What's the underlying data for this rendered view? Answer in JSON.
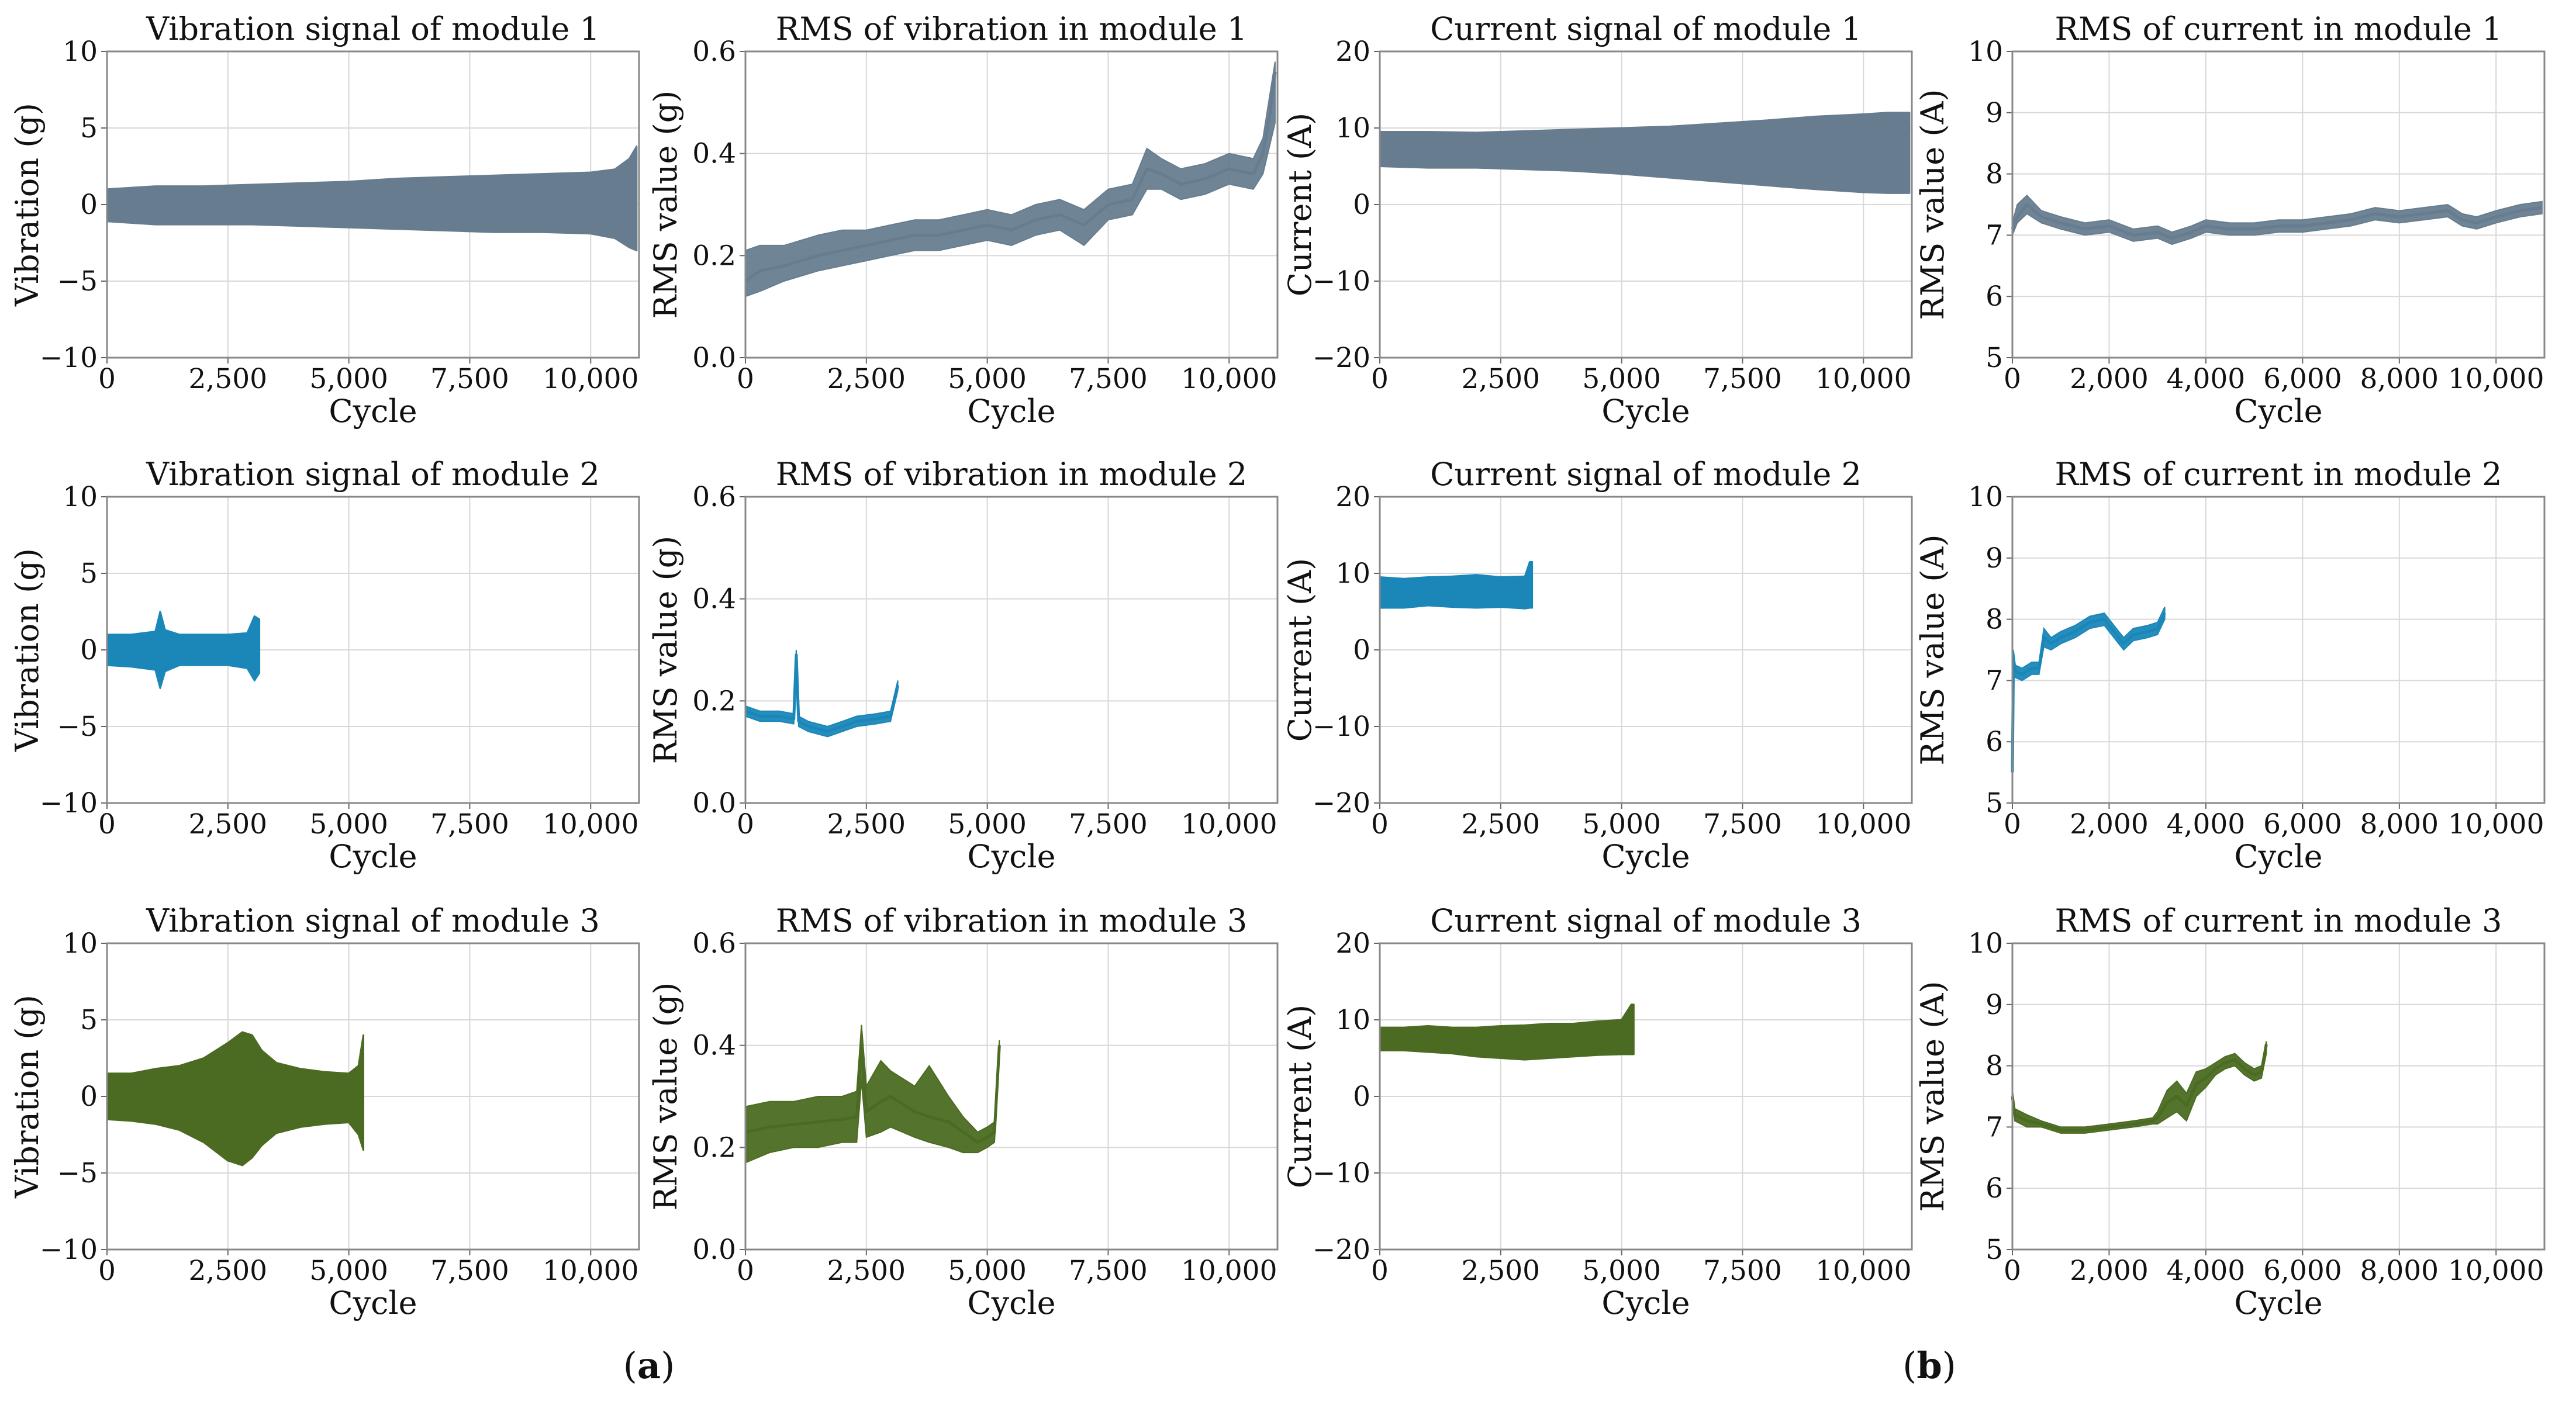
{
  "colors": {
    "module1": "#677d8f",
    "module2": "#1a87b8",
    "module3": "#4b6b22"
  },
  "chart_data": [
    {
      "type": "area",
      "title": "Vibration signal of module 1",
      "xlabel": "Cycle",
      "ylabel": "Vibration (g)",
      "xlim": [
        0,
        11000
      ],
      "ylim": [
        -10,
        10
      ],
      "xticks": [
        0,
        2500,
        5000,
        7500,
        10000
      ],
      "xtick_labels": [
        "0",
        "2,500",
        "5,000",
        "7,500",
        "10,000"
      ],
      "yticks": [
        -10,
        -5,
        0,
        5,
        10
      ],
      "ytick_labels": [
        "−10",
        "−5",
        "0",
        "5",
        "10"
      ],
      "color": "module1",
      "x": [
        0,
        1000,
        2000,
        3000,
        4000,
        5000,
        6000,
        7000,
        8000,
        9000,
        10000,
        10500,
        10800,
        10950
      ],
      "upper": [
        1.0,
        1.2,
        1.2,
        1.3,
        1.4,
        1.5,
        1.7,
        1.8,
        1.9,
        2.0,
        2.1,
        2.3,
        3.0,
        3.8
      ],
      "lower": [
        -1.1,
        -1.3,
        -1.3,
        -1.3,
        -1.4,
        -1.5,
        -1.6,
        -1.7,
        -1.8,
        -1.8,
        -1.9,
        -2.2,
        -2.8,
        -3.0
      ]
    },
    {
      "type": "line",
      "title": "RMS of vibration in module 1",
      "xlabel": "Cycle",
      "ylabel": "RMS value (g)",
      "xlim": [
        0,
        11000
      ],
      "ylim": [
        0,
        0.6
      ],
      "xticks": [
        0,
        2500,
        5000,
        7500,
        10000
      ],
      "xtick_labels": [
        "0",
        "2,500",
        "5,000",
        "7,500",
        "10,000"
      ],
      "yticks": [
        0,
        0.2,
        0.4,
        0.6
      ],
      "ytick_labels": [
        "0.0",
        "0.2",
        "0.4",
        "0.6"
      ],
      "color": "module1",
      "x": [
        0,
        300,
        800,
        1500,
        2000,
        2500,
        3000,
        3500,
        4000,
        4500,
        5000,
        5500,
        6000,
        6500,
        7000,
        7500,
        8000,
        8300,
        8600,
        9000,
        9500,
        10000,
        10500,
        10700,
        10850,
        10950
      ],
      "y": [
        0.15,
        0.17,
        0.18,
        0.2,
        0.21,
        0.22,
        0.23,
        0.24,
        0.24,
        0.25,
        0.26,
        0.25,
        0.27,
        0.28,
        0.26,
        0.3,
        0.31,
        0.37,
        0.36,
        0.34,
        0.35,
        0.37,
        0.36,
        0.4,
        0.48,
        0.56
      ],
      "y_upper": [
        0.21,
        0.22,
        0.22,
        0.24,
        0.25,
        0.25,
        0.26,
        0.27,
        0.27,
        0.28,
        0.29,
        0.28,
        0.3,
        0.31,
        0.29,
        0.33,
        0.34,
        0.41,
        0.39,
        0.37,
        0.38,
        0.4,
        0.39,
        0.43,
        0.52,
        0.58
      ],
      "y_lower": [
        0.12,
        0.13,
        0.15,
        0.17,
        0.18,
        0.19,
        0.2,
        0.21,
        0.21,
        0.22,
        0.23,
        0.22,
        0.24,
        0.25,
        0.22,
        0.27,
        0.28,
        0.33,
        0.33,
        0.31,
        0.32,
        0.34,
        0.33,
        0.36,
        0.42,
        0.46
      ]
    },
    {
      "type": "area",
      "title": "Current signal of module 1",
      "xlabel": "Cycle",
      "ylabel": "Current (A)",
      "xlim": [
        0,
        11000
      ],
      "ylim": [
        -20,
        20
      ],
      "xticks": [
        0,
        2500,
        5000,
        7500,
        10000
      ],
      "xtick_labels": [
        "0",
        "2,500",
        "5,000",
        "7,500",
        "10,000"
      ],
      "yticks": [
        -20,
        -10,
        0,
        10,
        20
      ],
      "ytick_labels": [
        "−20",
        "−10",
        "0",
        "10",
        "20"
      ],
      "color": "module1",
      "x": [
        0,
        1000,
        2000,
        3000,
        4000,
        5000,
        6000,
        7000,
        8000,
        9000,
        10000,
        10500,
        10950
      ],
      "upper": [
        9.5,
        9.5,
        9.4,
        9.6,
        9.8,
        10.0,
        10.2,
        10.6,
        11.0,
        11.5,
        11.8,
        12.0,
        12.0
      ],
      "lower": [
        5.0,
        4.8,
        4.8,
        4.6,
        4.4,
        4.0,
        3.5,
        3.0,
        2.5,
        2.0,
        1.6,
        1.5,
        1.5
      ]
    },
    {
      "type": "line",
      "title": "RMS of current in module 1",
      "xlabel": "Cycle",
      "ylabel": "RMS value (A)",
      "xlim": [
        0,
        11000
      ],
      "ylim": [
        5,
        10
      ],
      "xticks": [
        0,
        2000,
        4000,
        6000,
        8000,
        10000
      ],
      "xtick_labels": [
        "0",
        "2,000",
        "4,000",
        "6,000",
        "8,000",
        "10,000"
      ],
      "yticks": [
        5,
        6,
        7,
        8,
        9,
        10
      ],
      "ytick_labels": [
        "5",
        "6",
        "7",
        "8",
        "9",
        "10"
      ],
      "color": "module1",
      "x": [
        0,
        100,
        300,
        600,
        1000,
        1500,
        2000,
        2500,
        3000,
        3300,
        3700,
        4000,
        4500,
        5000,
        5500,
        6000,
        6500,
        7000,
        7500,
        8000,
        8500,
        9000,
        9300,
        9600,
        10000,
        10500,
        10950
      ],
      "y": [
        7.1,
        7.3,
        7.5,
        7.3,
        7.2,
        7.1,
        7.15,
        7.0,
        7.05,
        6.95,
        7.05,
        7.15,
        7.1,
        7.1,
        7.15,
        7.15,
        7.2,
        7.25,
        7.35,
        7.3,
        7.35,
        7.4,
        7.25,
        7.2,
        7.3,
        7.4,
        7.45
      ],
      "y_upper": [
        7.2,
        7.5,
        7.65,
        7.4,
        7.3,
        7.2,
        7.25,
        7.1,
        7.15,
        7.05,
        7.15,
        7.25,
        7.2,
        7.2,
        7.25,
        7.25,
        7.3,
        7.35,
        7.45,
        7.4,
        7.45,
        7.5,
        7.35,
        7.3,
        7.4,
        7.5,
        7.55
      ],
      "y_lower": [
        7.0,
        7.2,
        7.35,
        7.2,
        7.1,
        7.0,
        7.05,
        6.9,
        6.95,
        6.85,
        6.95,
        7.05,
        7.0,
        7.0,
        7.05,
        7.05,
        7.1,
        7.15,
        7.25,
        7.2,
        7.25,
        7.3,
        7.15,
        7.1,
        7.2,
        7.3,
        7.35
      ]
    },
    {
      "type": "area",
      "title": "Vibration signal of module 2",
      "xlabel": "Cycle",
      "ylabel": "Vibration (g)",
      "xlim": [
        0,
        11000
      ],
      "ylim": [
        -10,
        10
      ],
      "xticks": [
        0,
        2500,
        5000,
        7500,
        10000
      ],
      "xtick_labels": [
        "0",
        "2,500",
        "5,000",
        "7,500",
        "10,000"
      ],
      "yticks": [
        -10,
        -5,
        0,
        5,
        10
      ],
      "ytick_labels": [
        "−10",
        "−5",
        "0",
        "5",
        "10"
      ],
      "color": "module2",
      "x": [
        0,
        500,
        1000,
        1100,
        1200,
        1500,
        2000,
        2500,
        2900,
        3050,
        3150
      ],
      "upper": [
        1.0,
        1.0,
        1.2,
        2.5,
        1.3,
        1.0,
        1.0,
        1.0,
        1.1,
        2.2,
        2.0
      ],
      "lower": [
        -1.0,
        -1.1,
        -1.3,
        -2.5,
        -1.4,
        -1.0,
        -1.0,
        -1.0,
        -1.2,
        -2.0,
        -1.5
      ]
    },
    {
      "type": "line",
      "title": "RMS of vibration in module 2",
      "xlabel": "Cycle",
      "ylabel": "RMS value (g)",
      "xlim": [
        0,
        11000
      ],
      "ylim": [
        0,
        0.6
      ],
      "xticks": [
        0,
        2500,
        5000,
        7500,
        10000
      ],
      "xtick_labels": [
        "0",
        "2,500",
        "5,000",
        "7,500",
        "10,000"
      ],
      "yticks": [
        0,
        0.2,
        0.4,
        0.6
      ],
      "ytick_labels": [
        "0.0",
        "0.2",
        "0.4",
        "0.6"
      ],
      "color": "module2",
      "x": [
        0,
        300,
        700,
        1000,
        1050,
        1100,
        1300,
        1700,
        2000,
        2300,
        2700,
        3000,
        3150
      ],
      "y": [
        0.18,
        0.17,
        0.17,
        0.165,
        0.29,
        0.16,
        0.15,
        0.14,
        0.15,
        0.16,
        0.165,
        0.17,
        0.23
      ],
      "y_upper": [
        0.19,
        0.18,
        0.18,
        0.175,
        0.3,
        0.17,
        0.16,
        0.15,
        0.16,
        0.17,
        0.175,
        0.18,
        0.24
      ],
      "y_lower": [
        0.17,
        0.16,
        0.16,
        0.155,
        0.28,
        0.15,
        0.14,
        0.13,
        0.14,
        0.15,
        0.155,
        0.16,
        0.22
      ]
    },
    {
      "type": "area",
      "title": "Current signal of module 2",
      "xlabel": "Cycle",
      "ylabel": "Current (A)",
      "xlim": [
        0,
        11000
      ],
      "ylim": [
        -20,
        20
      ],
      "xticks": [
        0,
        2500,
        5000,
        7500,
        10000
      ],
      "xtick_labels": [
        "0",
        "2,500",
        "5,000",
        "7,500",
        "10,000"
      ],
      "yticks": [
        -20,
        -10,
        0,
        10,
        20
      ],
      "ytick_labels": [
        "−20",
        "−10",
        "0",
        "10",
        "20"
      ],
      "color": "module2",
      "x": [
        0,
        500,
        1000,
        1500,
        2000,
        2500,
        3000,
        3100,
        3150
      ],
      "upper": [
        9.5,
        9.3,
        9.5,
        9.6,
        9.8,
        9.5,
        9.6,
        11.5,
        11.5
      ],
      "lower": [
        5.5,
        5.5,
        5.8,
        5.6,
        5.5,
        5.6,
        5.4,
        5.5,
        5.5
      ]
    },
    {
      "type": "line",
      "title": "RMS of current in module 2",
      "xlabel": "Cycle",
      "ylabel": "RMS value (A)",
      "xlim": [
        0,
        11000
      ],
      "ylim": [
        5,
        10
      ],
      "xticks": [
        0,
        2000,
        4000,
        6000,
        8000,
        10000
      ],
      "xtick_labels": [
        "0",
        "2,000",
        "4,000",
        "6,000",
        "8,000",
        "10,000"
      ],
      "yticks": [
        5,
        6,
        7,
        8,
        9,
        10
      ],
      "ytick_labels": [
        "5",
        "6",
        "7",
        "8",
        "9",
        "10"
      ],
      "color": "module2",
      "x": [
        0,
        20,
        60,
        200,
        400,
        550,
        650,
        800,
        1000,
        1300,
        1600,
        1900,
        2100,
        2300,
        2500,
        2800,
        3000,
        3150
      ],
      "y": [
        5.5,
        7.3,
        7.15,
        7.1,
        7.2,
        7.2,
        7.7,
        7.6,
        7.7,
        7.8,
        7.95,
        8.0,
        7.8,
        7.6,
        7.75,
        7.8,
        7.85,
        8.1
      ],
      "y_upper": [
        5.6,
        7.5,
        7.25,
        7.2,
        7.3,
        7.3,
        7.85,
        7.7,
        7.8,
        7.9,
        8.05,
        8.1,
        7.9,
        7.7,
        7.85,
        7.9,
        7.95,
        8.2
      ],
      "y_lower": [
        5.3,
        7.1,
        7.05,
        7.0,
        7.1,
        7.1,
        7.55,
        7.5,
        7.6,
        7.7,
        7.85,
        7.9,
        7.7,
        7.5,
        7.65,
        7.7,
        7.75,
        8.0
      ]
    },
    {
      "type": "area",
      "title": "Vibration signal of module 3",
      "xlabel": "Cycle",
      "ylabel": "Vibration (g)",
      "xlim": [
        0,
        11000
      ],
      "ylim": [
        -10,
        10
      ],
      "xticks": [
        0,
        2500,
        5000,
        7500,
        10000
      ],
      "xtick_labels": [
        "0",
        "2,500",
        "5,000",
        "7,500",
        "10,000"
      ],
      "yticks": [
        -10,
        -5,
        0,
        5,
        10
      ],
      "ytick_labels": [
        "−10",
        "−5",
        "0",
        "5",
        "10"
      ],
      "color": "module3",
      "x": [
        0,
        500,
        1000,
        1500,
        2000,
        2500,
        2800,
        3000,
        3200,
        3500,
        4000,
        4500,
        5000,
        5200,
        5300
      ],
      "upper": [
        1.5,
        1.5,
        1.8,
        2.0,
        2.5,
        3.5,
        4.2,
        4.0,
        3.0,
        2.2,
        1.8,
        1.6,
        1.5,
        2.0,
        4.0
      ],
      "lower": [
        -1.5,
        -1.6,
        -1.8,
        -2.2,
        -3.0,
        -4.2,
        -4.5,
        -4.0,
        -3.2,
        -2.4,
        -2.0,
        -1.8,
        -1.7,
        -2.5,
        -3.5
      ]
    },
    {
      "type": "line",
      "title": "RMS of vibration in module 3",
      "xlabel": "Cycle",
      "ylabel": "RMS value (g)",
      "xlim": [
        0,
        11000
      ],
      "ylim": [
        0,
        0.6
      ],
      "xticks": [
        0,
        2500,
        5000,
        7500,
        10000
      ],
      "xtick_labels": [
        "0",
        "2,500",
        "5,000",
        "7,500",
        "10,000"
      ],
      "yticks": [
        0,
        0.2,
        0.4,
        0.6
      ],
      "ytick_labels": [
        "0.0",
        "0.2",
        "0.4",
        "0.6"
      ],
      "color": "module3",
      "x": [
        0,
        500,
        1000,
        1500,
        2000,
        2300,
        2400,
        2500,
        2800,
        3000,
        3500,
        3800,
        4200,
        4500,
        4800,
        5000,
        5150,
        5250
      ],
      "y": [
        0.23,
        0.24,
        0.245,
        0.25,
        0.255,
        0.26,
        0.4,
        0.27,
        0.29,
        0.3,
        0.27,
        0.26,
        0.25,
        0.23,
        0.21,
        0.22,
        0.23,
        0.4
      ],
      "y_upper": [
        0.28,
        0.29,
        0.29,
        0.3,
        0.3,
        0.31,
        0.44,
        0.32,
        0.37,
        0.35,
        0.32,
        0.36,
        0.3,
        0.26,
        0.23,
        0.24,
        0.25,
        0.41
      ],
      "y_lower": [
        0.17,
        0.19,
        0.2,
        0.2,
        0.21,
        0.21,
        0.33,
        0.22,
        0.23,
        0.24,
        0.22,
        0.21,
        0.2,
        0.19,
        0.19,
        0.2,
        0.21,
        0.38
      ]
    },
    {
      "type": "area",
      "title": "Current signal of module 3",
      "xlabel": "Cycle",
      "ylabel": "Current (A)",
      "xlim": [
        0,
        11000
      ],
      "ylim": [
        -20,
        20
      ],
      "xticks": [
        0,
        2500,
        5000,
        7500,
        10000
      ],
      "xtick_labels": [
        "0",
        "2,500",
        "5,000",
        "7,500",
        "10,000"
      ],
      "yticks": [
        -20,
        -10,
        0,
        10,
        20
      ],
      "ytick_labels": [
        "−20",
        "−10",
        "0",
        "10",
        "20"
      ],
      "color": "module3",
      "x": [
        0,
        500,
        1000,
        1500,
        2000,
        2500,
        3000,
        3500,
        4000,
        4500,
        5000,
        5200,
        5250
      ],
      "upper": [
        9.0,
        9.0,
        9.2,
        9.0,
        9.0,
        9.2,
        9.3,
        9.5,
        9.5,
        9.8,
        10.0,
        12.0,
        12.0
      ],
      "lower": [
        6.0,
        6.0,
        5.8,
        5.6,
        5.2,
        5.0,
        4.8,
        5.0,
        5.2,
        5.4,
        5.5,
        5.5,
        5.5
      ]
    },
    {
      "type": "line",
      "title": "RMS of current in module 3",
      "xlabel": "Cycle",
      "ylabel": "RMS value (A)",
      "xlim": [
        0,
        11000
      ],
      "ylim": [
        5,
        10
      ],
      "xticks": [
        0,
        2000,
        4000,
        6000,
        8000,
        10000
      ],
      "xtick_labels": [
        "0",
        "2,000",
        "4,000",
        "6,000",
        "8,000",
        "10,000"
      ],
      "yticks": [
        5,
        6,
        7,
        8,
        9,
        10
      ],
      "ytick_labels": [
        "5",
        "6",
        "7",
        "8",
        "9",
        "10"
      ],
      "color": "module3",
      "x": [
        0,
        50,
        300,
        600,
        1000,
        1500,
        2000,
        2500,
        2900,
        3000,
        3200,
        3400,
        3600,
        3800,
        4000,
        4200,
        4400,
        4600,
        4800,
        5000,
        5150,
        5250
      ],
      "y": [
        7.5,
        7.2,
        7.1,
        7.05,
        6.95,
        6.95,
        7.0,
        7.05,
        7.1,
        7.15,
        7.4,
        7.5,
        7.35,
        7.7,
        7.8,
        7.95,
        8.05,
        8.1,
        7.95,
        7.85,
        7.9,
        8.35
      ],
      "y_upper": [
        7.6,
        7.3,
        7.2,
        7.1,
        7.0,
        7.0,
        7.05,
        7.1,
        7.15,
        7.25,
        7.6,
        7.75,
        7.55,
        7.9,
        7.95,
        8.05,
        8.15,
        8.2,
        8.05,
        7.95,
        8.0,
        8.4
      ],
      "y_lower": [
        7.4,
        7.1,
        7.0,
        7.0,
        6.9,
        6.9,
        6.95,
        7.0,
        7.05,
        7.05,
        7.15,
        7.25,
        7.1,
        7.5,
        7.65,
        7.85,
        7.95,
        8.0,
        7.85,
        7.75,
        7.8,
        8.2
      ]
    }
  ],
  "panel_labels": {
    "a": "a",
    "b": "b"
  }
}
